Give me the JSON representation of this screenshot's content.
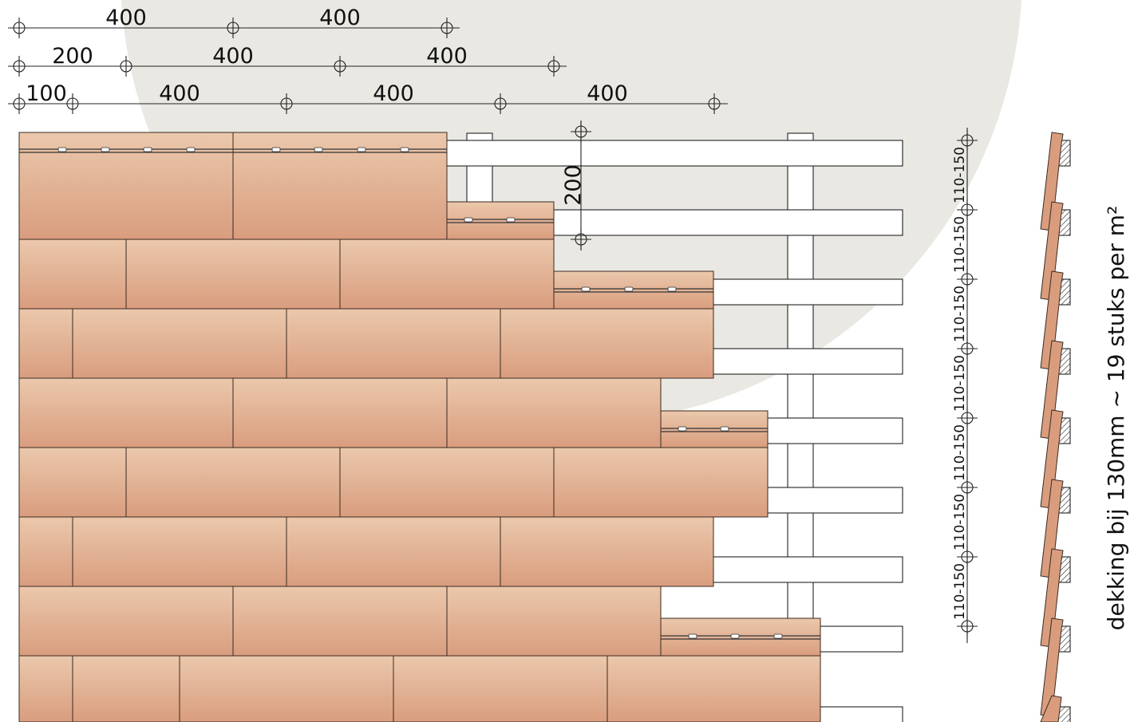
{
  "colors": {
    "background_disc": "#e9e8e2",
    "tile_top": "#ebc8ac",
    "tile_bottom": "#d99d7e",
    "tile_stroke": "#3a2a22",
    "batten_fill": "#ffffff",
    "line": "#222222"
  },
  "dimensions": {
    "row1": [
      "400",
      "400"
    ],
    "row2": [
      "200",
      "400",
      "400"
    ],
    "row3": [
      "100",
      "400",
      "400",
      "400"
    ],
    "vertical": "200"
  },
  "batten_spacing": {
    "labels": [
      "110-150",
      "110-150",
      "110-150",
      "110-150",
      "110-150",
      "110-150",
      "110-150"
    ]
  },
  "coverage": {
    "text": "dekking bij 130mm ~ 19 stuks per m²"
  }
}
